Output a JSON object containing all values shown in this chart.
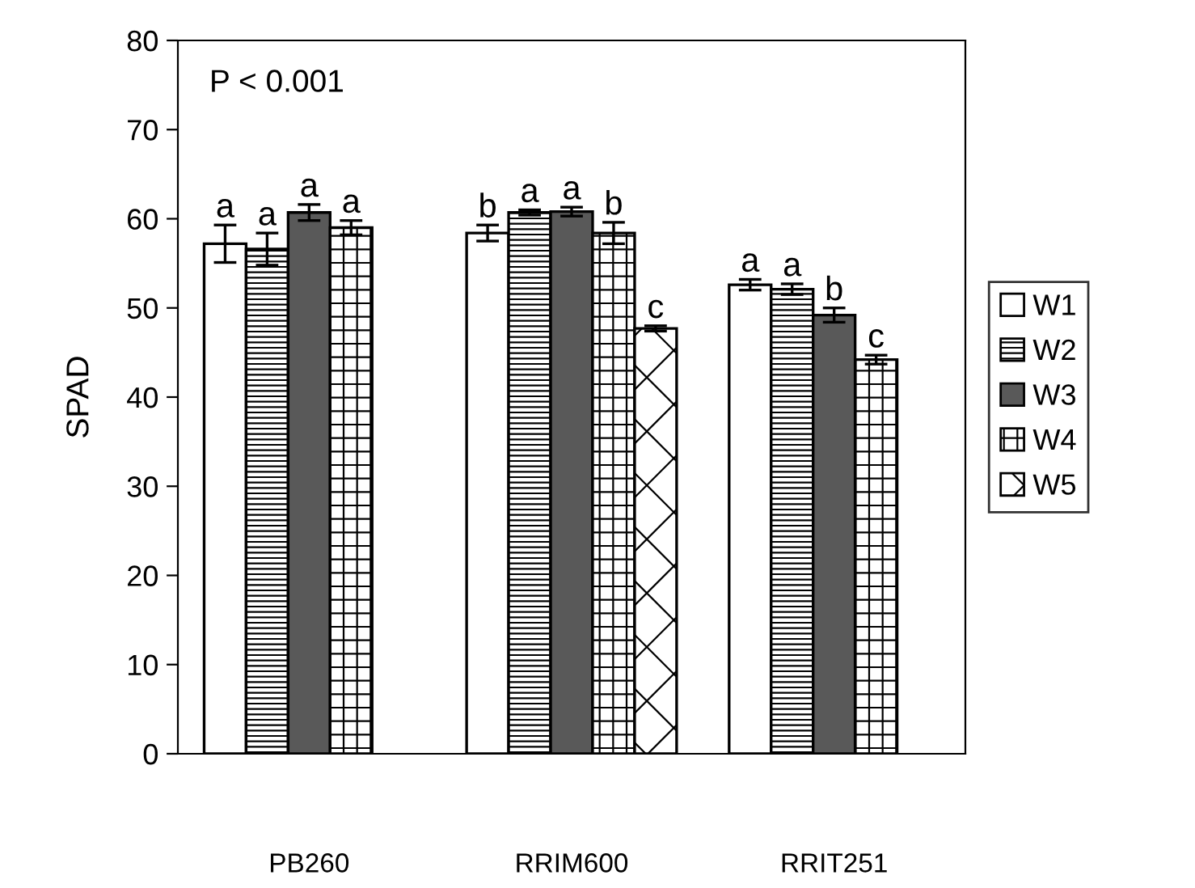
{
  "chart_data": {
    "type": "bar",
    "ylabel": "SPAD",
    "categories": [
      "PB260",
      "RRIM600",
      "RRIT251"
    ],
    "series": [
      {
        "name": "W1",
        "color": "#ffffff",
        "values": [
          57.2,
          58.4,
          52.6
        ],
        "errors": [
          2.1,
          0.9,
          0.6
        ],
        "value_labels": [
          "a",
          "b",
          "a"
        ]
      },
      {
        "name": "W2",
        "color": "#000000",
        "values": [
          56.6,
          60.7,
          52.1
        ],
        "errors": [
          1.8,
          0.3,
          0.6
        ],
        "value_labels": [
          "a",
          "a",
          "a"
        ]
      },
      {
        "name": "W3",
        "color": "#595959",
        "values": [
          60.7,
          60.8,
          49.2
        ],
        "errors": [
          0.9,
          0.5,
          0.8
        ],
        "value_labels": [
          "a",
          "a",
          "b"
        ]
      },
      {
        "name": "W4",
        "color": "#000000",
        "values": [
          59.0,
          58.4,
          44.2
        ],
        "errors": [
          0.8,
          1.2,
          0.5
        ],
        "value_labels": [
          "a",
          "b",
          "c"
        ]
      },
      {
        "name": "W5",
        "color": "#000000",
        "values": [
          null,
          47.7,
          null
        ],
        "errors": [
          null,
          0.3,
          null
        ],
        "value_labels": [
          null,
          "c",
          null
        ]
      }
    ],
    "ylim": [
      0,
      80
    ],
    "yticks": [
      0,
      10,
      20,
      30,
      40,
      50,
      60,
      70,
      80
    ],
    "annotations": [
      "P < 0.001"
    ],
    "grid": false,
    "legend": "right"
  }
}
